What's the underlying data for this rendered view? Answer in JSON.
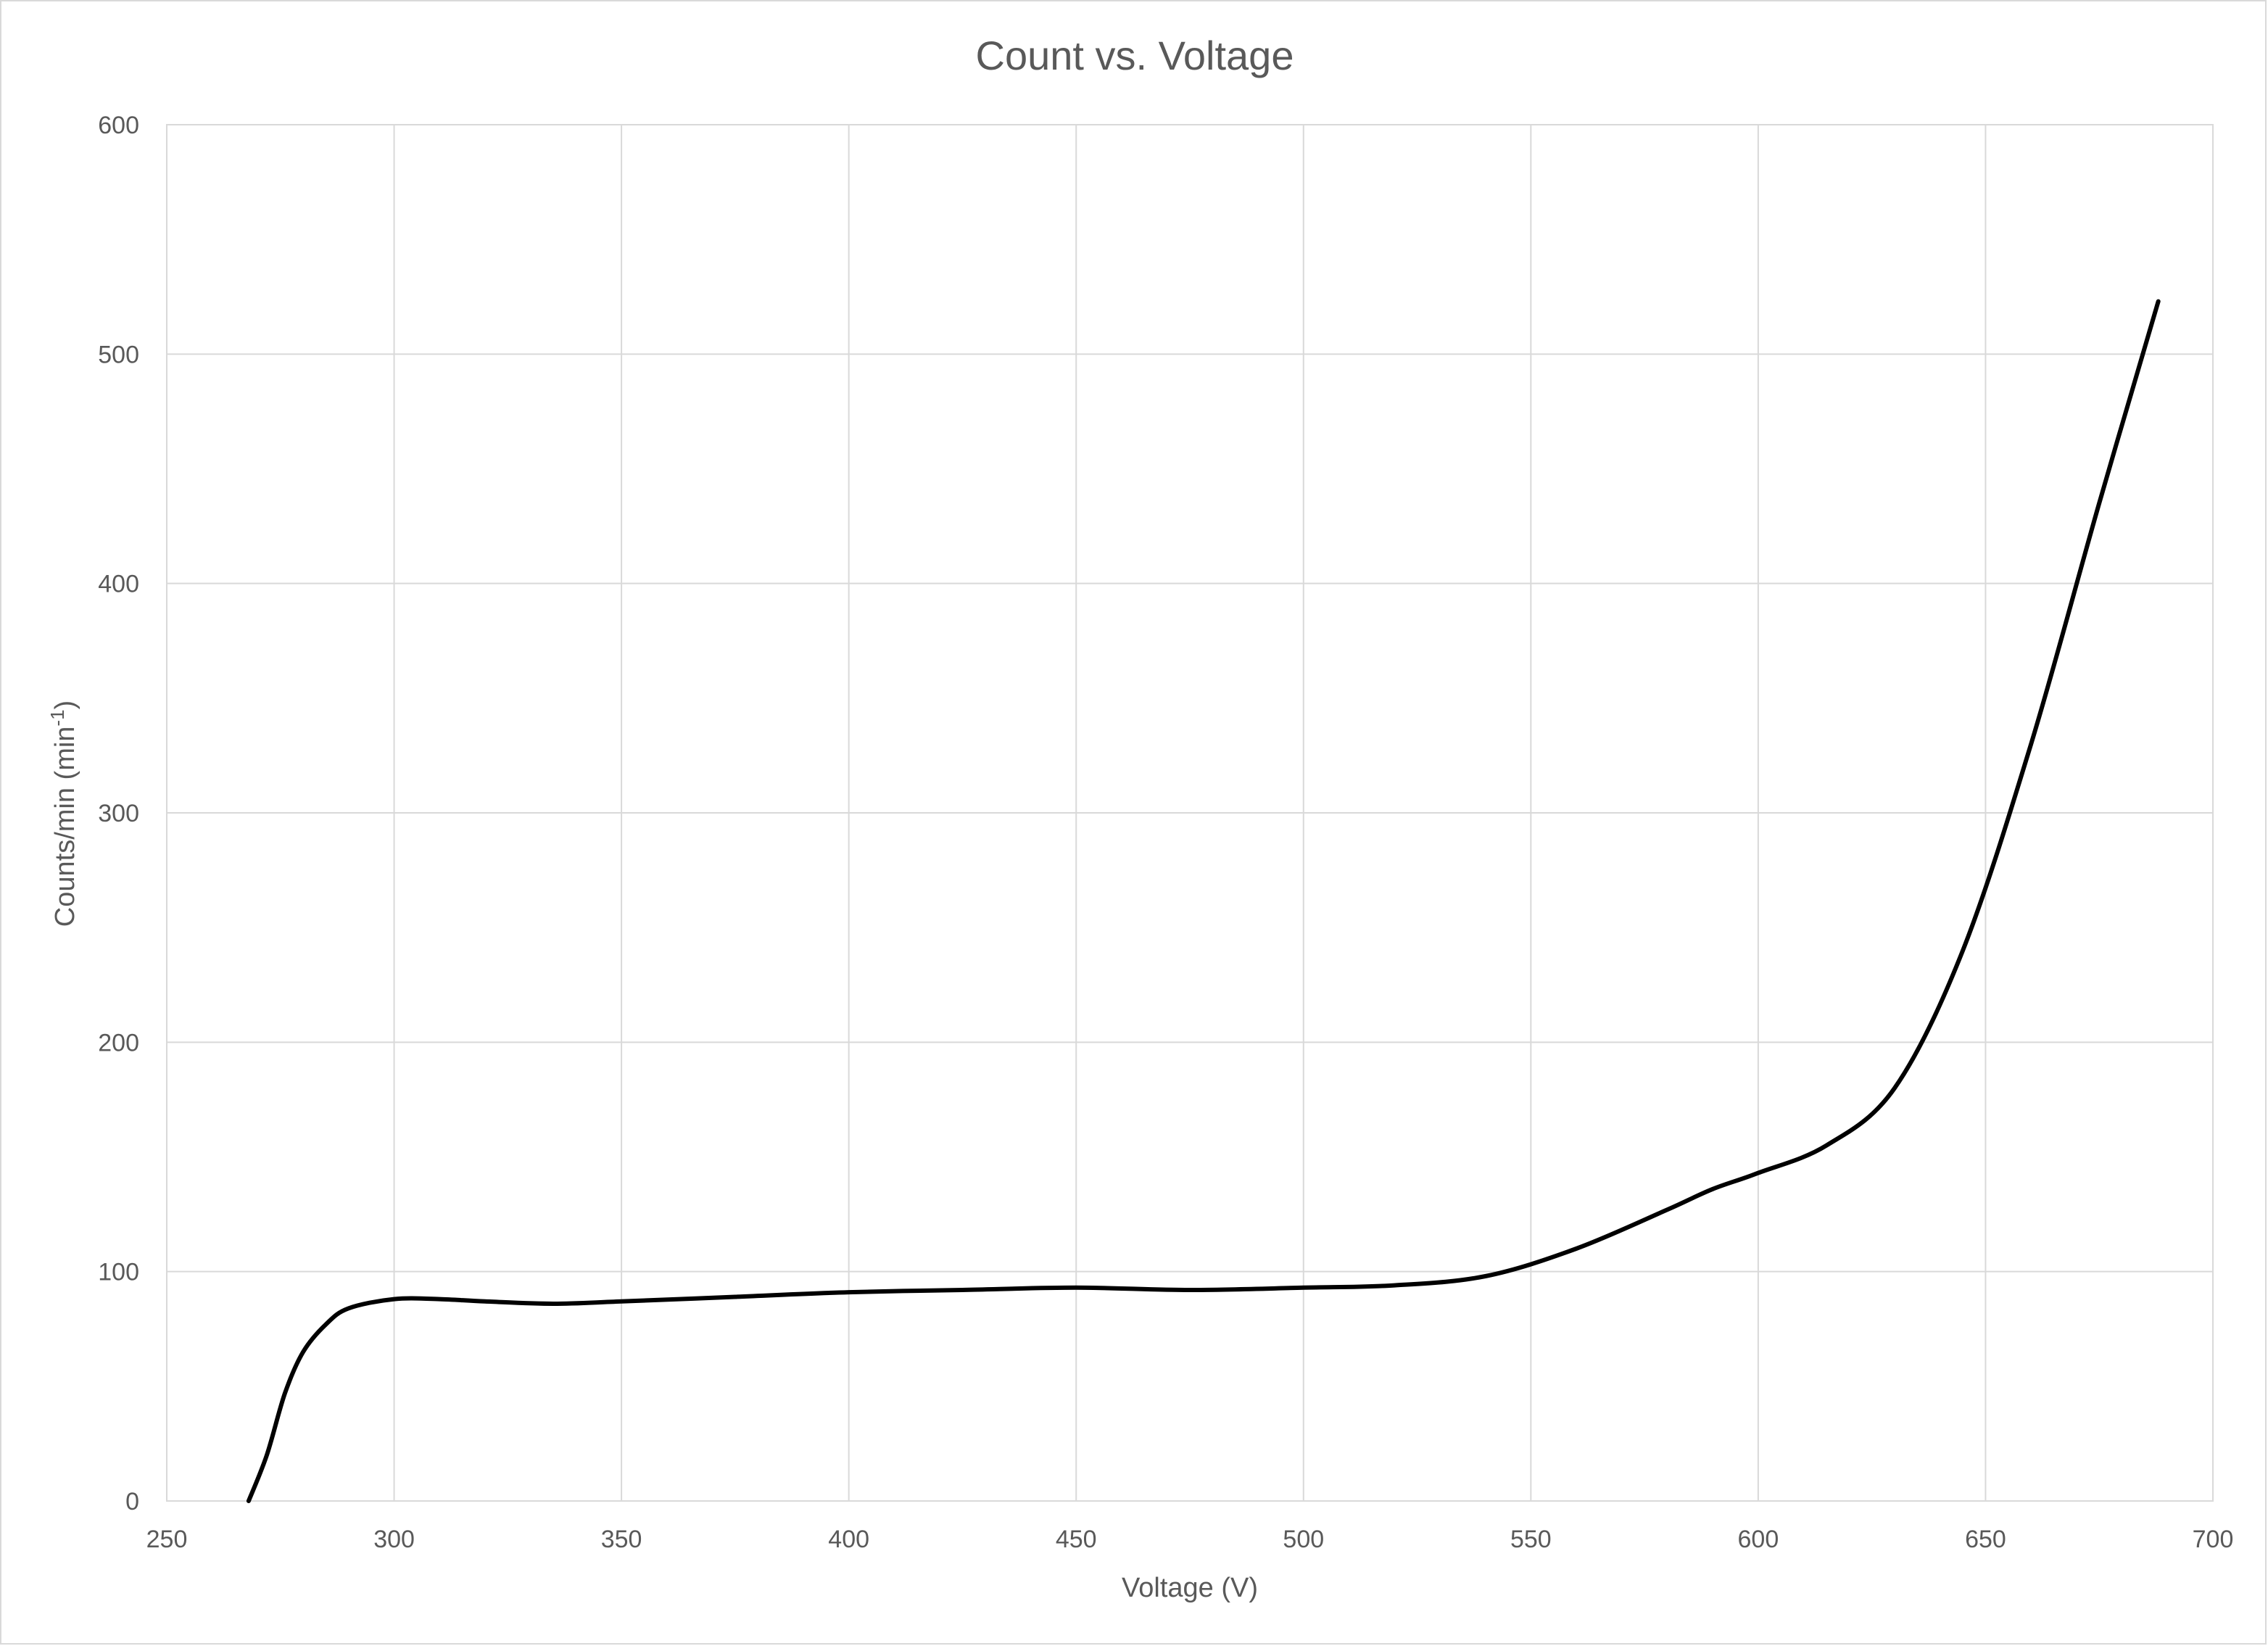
{
  "chart_data": {
    "type": "line",
    "title": "Count vs. Voltage",
    "xlabel": "Voltage (V)",
    "ylabel": "Counts/min (min",
    "ylabel_sup": "-1",
    "ylabel_end": ")",
    "xlim": [
      250,
      700
    ],
    "ylim": [
      0,
      600
    ],
    "xticks": [
      250,
      300,
      350,
      400,
      450,
      500,
      550,
      600,
      650,
      700
    ],
    "yticks": [
      0,
      100,
      200,
      300,
      400,
      500,
      600
    ],
    "grid": true,
    "legend": "none",
    "series": [
      {
        "color": "#000000",
        "smooth": true,
        "x": [
          268,
          272,
          276,
          280,
          285,
          290,
          300,
          310,
          320,
          335,
          350,
          375,
          400,
          425,
          450,
          475,
          500,
          520,
          540,
          560,
          580,
          590,
          600,
          615,
          630,
          645,
          660,
          675,
          688
        ],
        "y": [
          0,
          20,
          47,
          65,
          77,
          84,
          88,
          88,
          87,
          86,
          87,
          89,
          91,
          92,
          93,
          92,
          93,
          94,
          98,
          110,
          127,
          136,
          143,
          155,
          180,
          240,
          330,
          435,
          523
        ]
      }
    ]
  }
}
